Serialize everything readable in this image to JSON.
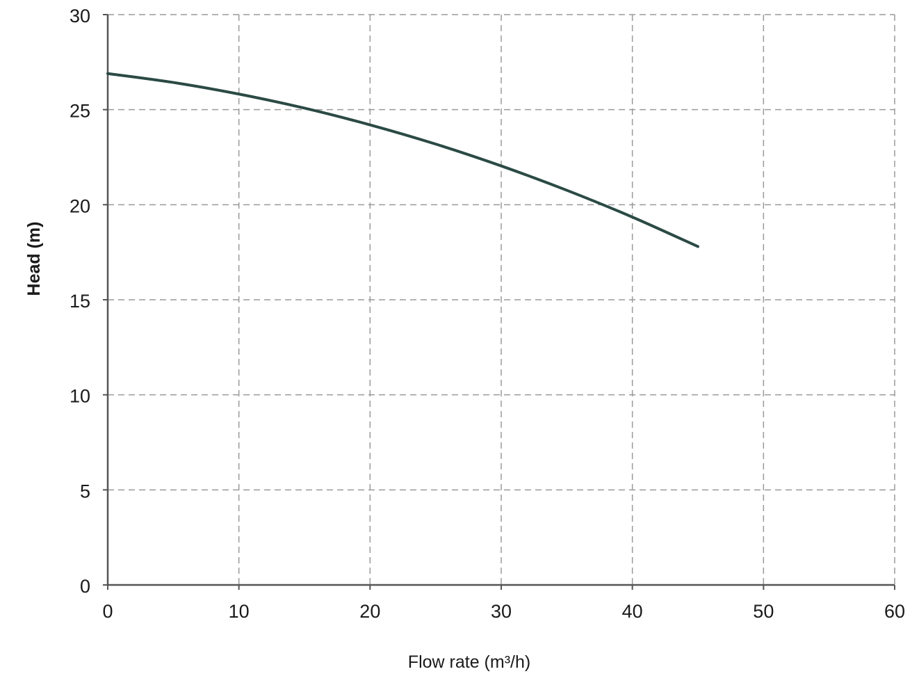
{
  "chart_data": {
    "type": "line",
    "title": "",
    "xlabel": "Flow rate (m³/h)",
    "ylabel": "Head (m)",
    "xlim": [
      0,
      60
    ],
    "ylim": [
      0,
      30
    ],
    "xticks": [
      0,
      10,
      20,
      30,
      40,
      50,
      60
    ],
    "yticks": [
      0,
      5,
      10,
      15,
      20,
      25,
      30
    ],
    "grid": true,
    "grid_style": "dashed",
    "legend": "none",
    "series": [
      {
        "color": "#2b4a45",
        "x": [
          0,
          5,
          10,
          15,
          20,
          25,
          30,
          35,
          40,
          45
        ],
        "y": [
          26.9,
          26.43,
          25.82,
          25.08,
          24.2,
          23.19,
          22.04,
          20.76,
          19.35,
          17.8
        ]
      }
    ],
    "colors": {
      "axis": "#555555",
      "grid": "#9a9a9a"
    }
  }
}
